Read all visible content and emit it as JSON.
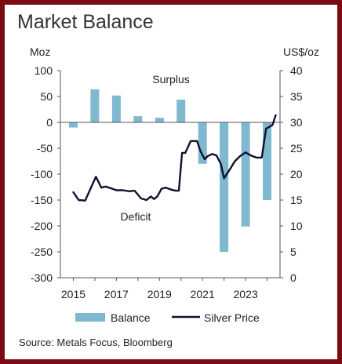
{
  "chart_data": {
    "type": "bar-line",
    "title": "Market Balance",
    "source": "Source: Metals Focus, Bloomberg",
    "left_axis": {
      "unit": "Moz",
      "ylim": [
        -300,
        100
      ],
      "ticks": [
        100,
        50,
        0,
        -50,
        -100,
        -150,
        -200,
        -250,
        -300
      ],
      "tick_labels": [
        "100",
        "50",
        "0",
        "-50",
        "-100",
        "-150",
        "-200",
        "-250",
        "-300"
      ]
    },
    "right_axis": {
      "unit": "US$/oz",
      "ylim": [
        0,
        40
      ],
      "ticks": [
        40,
        35,
        30,
        25,
        20,
        15,
        10,
        5,
        0
      ],
      "tick_labels": [
        "40",
        "35",
        "30",
        "25",
        "20",
        "15",
        "10",
        "5",
        "0"
      ]
    },
    "x_axis": {
      "xlim": [
        2014.4,
        2024.6
      ],
      "tick_labels": [
        "2015",
        "2017",
        "2019",
        "2021",
        "2023"
      ],
      "tick_values": [
        2015,
        2017,
        2019,
        2021,
        2023
      ]
    },
    "annotations": {
      "surplus": "Surplus",
      "deficit": "Deficit"
    },
    "legend": {
      "balance": "Balance",
      "silver_price": "Silver Price",
      "placement": "bottom"
    },
    "colors": {
      "bar": "#7eb9cf",
      "line": "#101030",
      "frame": "#7a0a14",
      "axis": "#555555"
    },
    "series": [
      {
        "name": "Balance",
        "kind": "bar",
        "axis": "left",
        "x": [
          2015,
          2016,
          2017,
          2018,
          2019,
          2020,
          2021,
          2022,
          2023,
          2024
        ],
        "values": [
          -10,
          64,
          52,
          12,
          9,
          44,
          -80,
          -250,
          -201,
          -150
        ]
      },
      {
        "name": "Silver Price",
        "kind": "line",
        "axis": "right",
        "x": [
          2015.0,
          2015.25,
          2015.55,
          2015.8,
          2016.05,
          2016.3,
          2016.5,
          2016.8,
          2017.0,
          2017.3,
          2017.6,
          2017.85,
          2018.15,
          2018.4,
          2018.6,
          2018.75,
          2018.9,
          2019.1,
          2019.3,
          2019.55,
          2019.75,
          2019.9,
          2020.05,
          2020.2,
          2020.45,
          2020.75,
          2020.9,
          2021.1,
          2021.25,
          2021.45,
          2021.65,
          2021.85,
          2022.0,
          2022.25,
          2022.5,
          2022.75,
          2023.0,
          2023.25,
          2023.5,
          2023.75,
          2023.95,
          2024.05,
          2024.25,
          2024.4
        ],
        "values": [
          16.5,
          15.0,
          14.9,
          17.2,
          19.5,
          17.4,
          17.6,
          17.2,
          16.9,
          16.9,
          16.7,
          16.8,
          15.3,
          15.0,
          15.7,
          15.2,
          15.7,
          17.2,
          17.4,
          17.0,
          16.8,
          16.8,
          24.1,
          24.1,
          26.4,
          26.4,
          24.5,
          22.9,
          23.5,
          23.9,
          23.6,
          22.0,
          19.2,
          20.8,
          22.5,
          23.5,
          24.2,
          23.6,
          23.2,
          23.2,
          28.8,
          29.0,
          29.5,
          31.4
        ]
      }
    ]
  }
}
